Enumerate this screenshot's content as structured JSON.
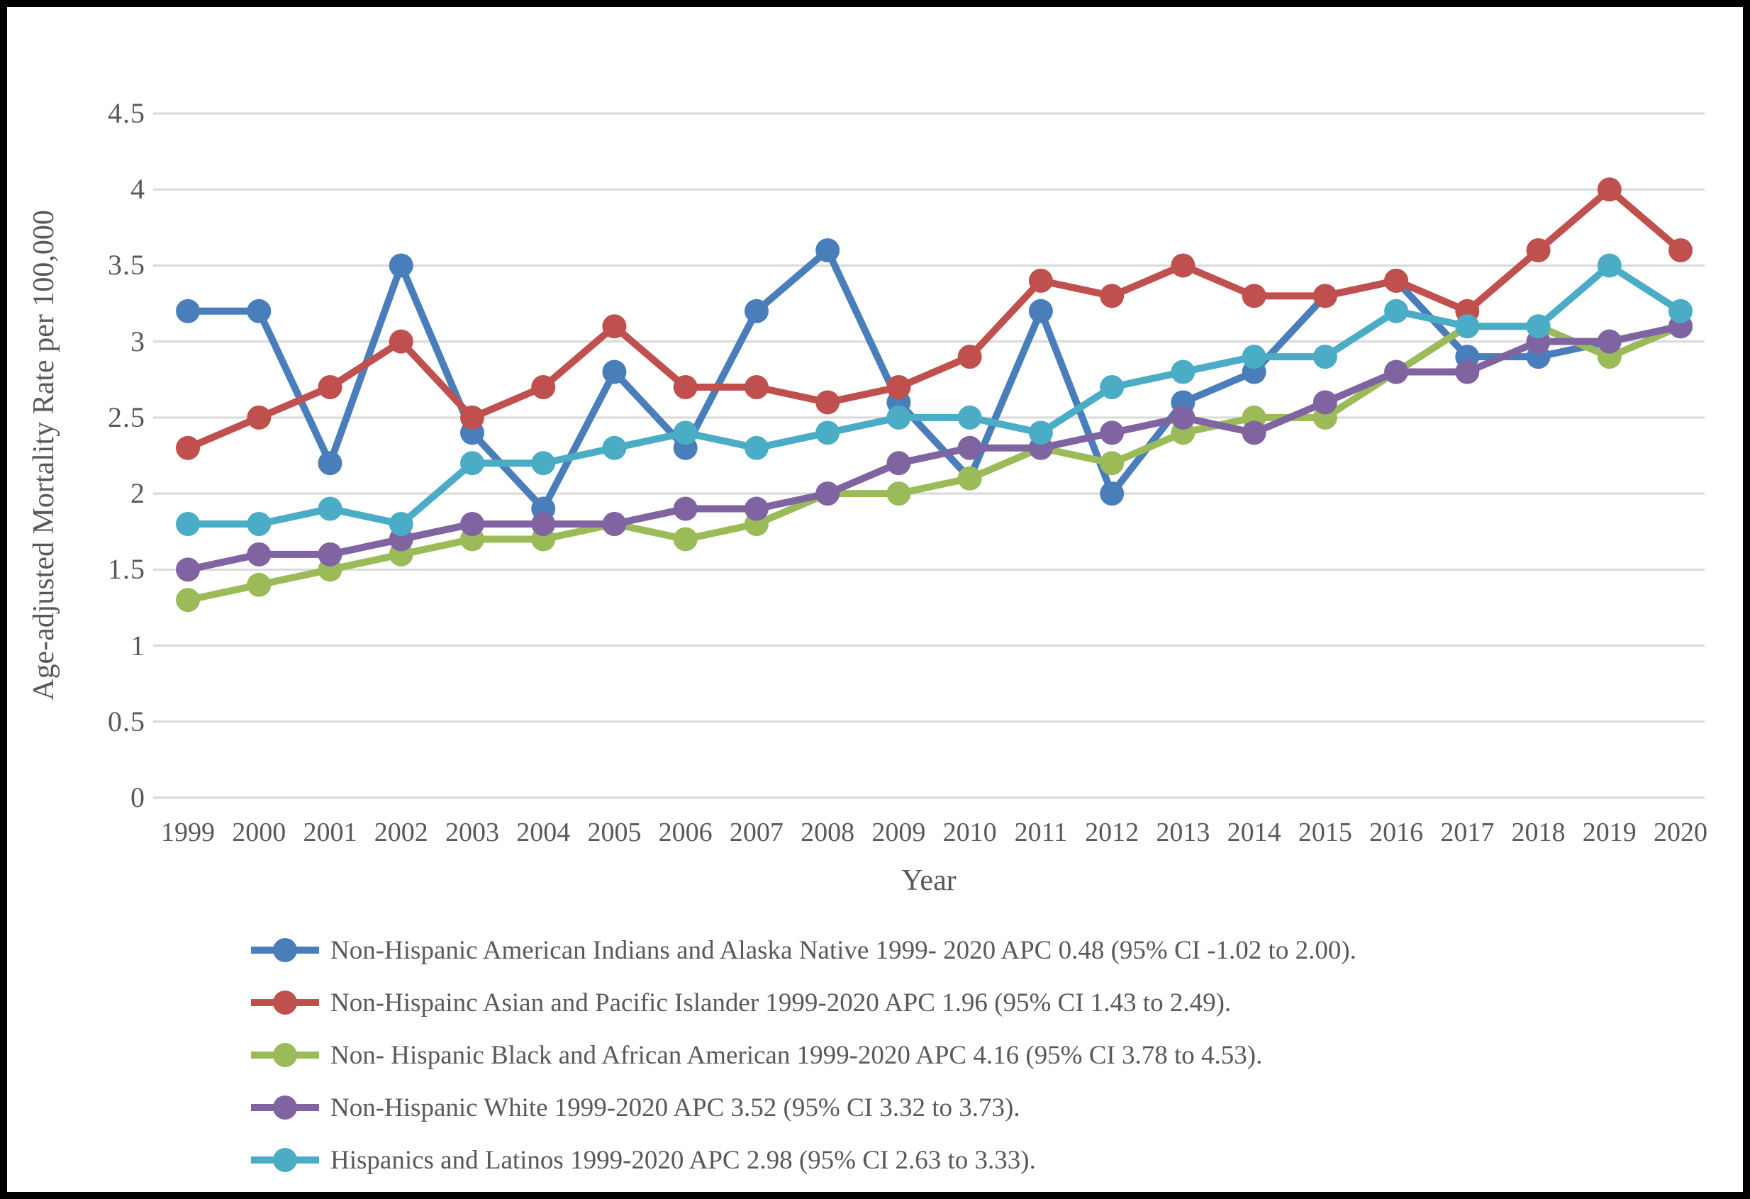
{
  "chart_data": {
    "type": "line",
    "title": "",
    "xlabel": "Year",
    "ylabel": "Age-adjusted Mortality Rate per 100,000",
    "ylim": [
      0,
      4.5
    ],
    "ytick_labels": [
      "0",
      "0.5",
      "1",
      "1.5",
      "2",
      "2.5",
      "3",
      "3.5",
      "4",
      "4.5"
    ],
    "grid": "horizontal",
    "grid_color": "#D9D9D9",
    "text_color": "#595959",
    "legend_position": "bottom",
    "categories": [
      1999,
      2000,
      2001,
      2002,
      2003,
      2004,
      2005,
      2006,
      2007,
      2008,
      2009,
      2010,
      2011,
      2012,
      2013,
      2014,
      2015,
      2016,
      2017,
      2018,
      2019,
      2020
    ],
    "series": [
      {
        "name": "Non-Hispanic American Indians and Alaska Native 1999- 2020 APC 0.48 (95% CI -1.02 to 2.00).",
        "color": "#4A7EBB",
        "values": [
          3.2,
          3.2,
          2.2,
          3.5,
          2.4,
          1.9,
          2.8,
          2.3,
          3.2,
          3.6,
          2.6,
          2.1,
          3.2,
          2.0,
          2.6,
          2.8,
          3.3,
          3.4,
          2.9,
          2.9,
          3.0,
          3.1
        ]
      },
      {
        "name": "Non-Hispainc Asian and Pacific Islander 1999-2020 APC 1.96 (95% CI 1.43 to 2.49).",
        "color": "#C0504D",
        "values": [
          2.3,
          2.5,
          2.7,
          3.0,
          2.5,
          2.7,
          3.1,
          2.7,
          2.7,
          2.6,
          2.7,
          2.9,
          3.4,
          3.3,
          3.5,
          3.3,
          3.3,
          3.4,
          3.2,
          3.6,
          4.0,
          3.6
        ]
      },
      {
        "name": "Non- Hispanic Black and African American 1999-2020 APC 4.16 (95% CI 3.78 to 4.53).",
        "color": "#9BBB59",
        "values": [
          1.3,
          1.4,
          1.5,
          1.6,
          1.7,
          1.7,
          1.8,
          1.7,
          1.8,
          2.0,
          2.0,
          2.1,
          2.3,
          2.2,
          2.4,
          2.5,
          2.5,
          2.8,
          3.1,
          3.1,
          2.9,
          3.1
        ]
      },
      {
        "name": "Non-Hispanic White 1999-2020 APC 3.52 (95% CI 3.32 to 3.73).",
        "color": "#8064A2",
        "values": [
          1.5,
          1.6,
          1.6,
          1.7,
          1.8,
          1.8,
          1.8,
          1.9,
          1.9,
          2.0,
          2.2,
          2.3,
          2.3,
          2.4,
          2.5,
          2.4,
          2.6,
          2.8,
          2.8,
          3.0,
          3.0,
          3.1
        ]
      },
      {
        "name": "Hispanics and Latinos 1999-2020 APC 2.98 (95% CI 2.63 to 3.33).",
        "color": "#4BACC6",
        "values": [
          1.8,
          1.8,
          1.9,
          1.8,
          2.2,
          2.2,
          2.3,
          2.4,
          2.3,
          2.4,
          2.5,
          2.5,
          2.4,
          2.7,
          2.8,
          2.9,
          2.9,
          3.2,
          3.1,
          3.1,
          3.5,
          3.2
        ]
      }
    ]
  }
}
